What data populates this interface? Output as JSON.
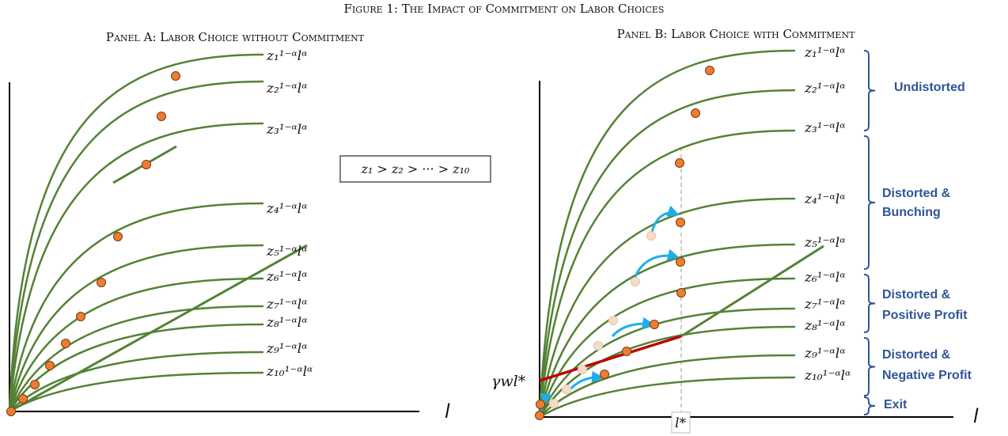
{
  "figure_title": "Figure 1: The Impact of Commitment on Labor Choices",
  "ordering_note": "z₁ > z₂ > ··· > z₁₀",
  "axis_label_l": "l",
  "lstar_label": "l*",
  "gamma_label": "γwl*",
  "panel_a": {
    "title": "Panel A: Labor Choice without Commitment",
    "curve_labels": [
      "z₁¹⁻ᵅlᵅ",
      "z₂¹⁻ᵅlᵅ",
      "z₃¹⁻ᵅlᵅ",
      "z₄¹⁻ᵅlᵅ",
      "z₅¹⁻ᵅlᵅ",
      "z₆¹⁻ᵅlᵅ",
      "z₇¹⁻ᵅlᵅ",
      "z₈¹⁻ᵅlᵅ",
      "z₉¹⁻ᵅlᵅ",
      "z₁₀¹⁻ᵅlᵅ"
    ]
  },
  "panel_b": {
    "title": "Panel B: Labor Choice with Commitment",
    "curve_labels": [
      "z₁¹⁻ᵅlᵅ",
      "z₂¹⁻ᵅlᵅ",
      "z₃¹⁻ᵅlᵅ",
      "z₄¹⁻ᵅlᵅ",
      "z₅¹⁻ᵅlᵅ",
      "z₆¹⁻ᵅlᵅ",
      "z₇¹⁻ᵅlᵅ",
      "z₈¹⁻ᵅlᵅ",
      "z₉¹⁻ᵅlᵅ",
      "z₁₀¹⁻ᵅlᵅ"
    ],
    "categories": {
      "undistorted": "Undistorted",
      "bunching_1": "Distorted &",
      "bunching_2": "Bunching",
      "positive_1": "Distorted &",
      "positive_2": "Positive Profit",
      "negative_1": "Distorted &",
      "negative_2": "Negative Profit",
      "exit": "Exit"
    }
  },
  "colors": {
    "curve": "#548235",
    "dot": "#ED7D31",
    "dot_faded": "#F6DCC8",
    "arrow": "#1DAEEA",
    "red_line": "#C00000",
    "brace": "#2F5597"
  }
}
